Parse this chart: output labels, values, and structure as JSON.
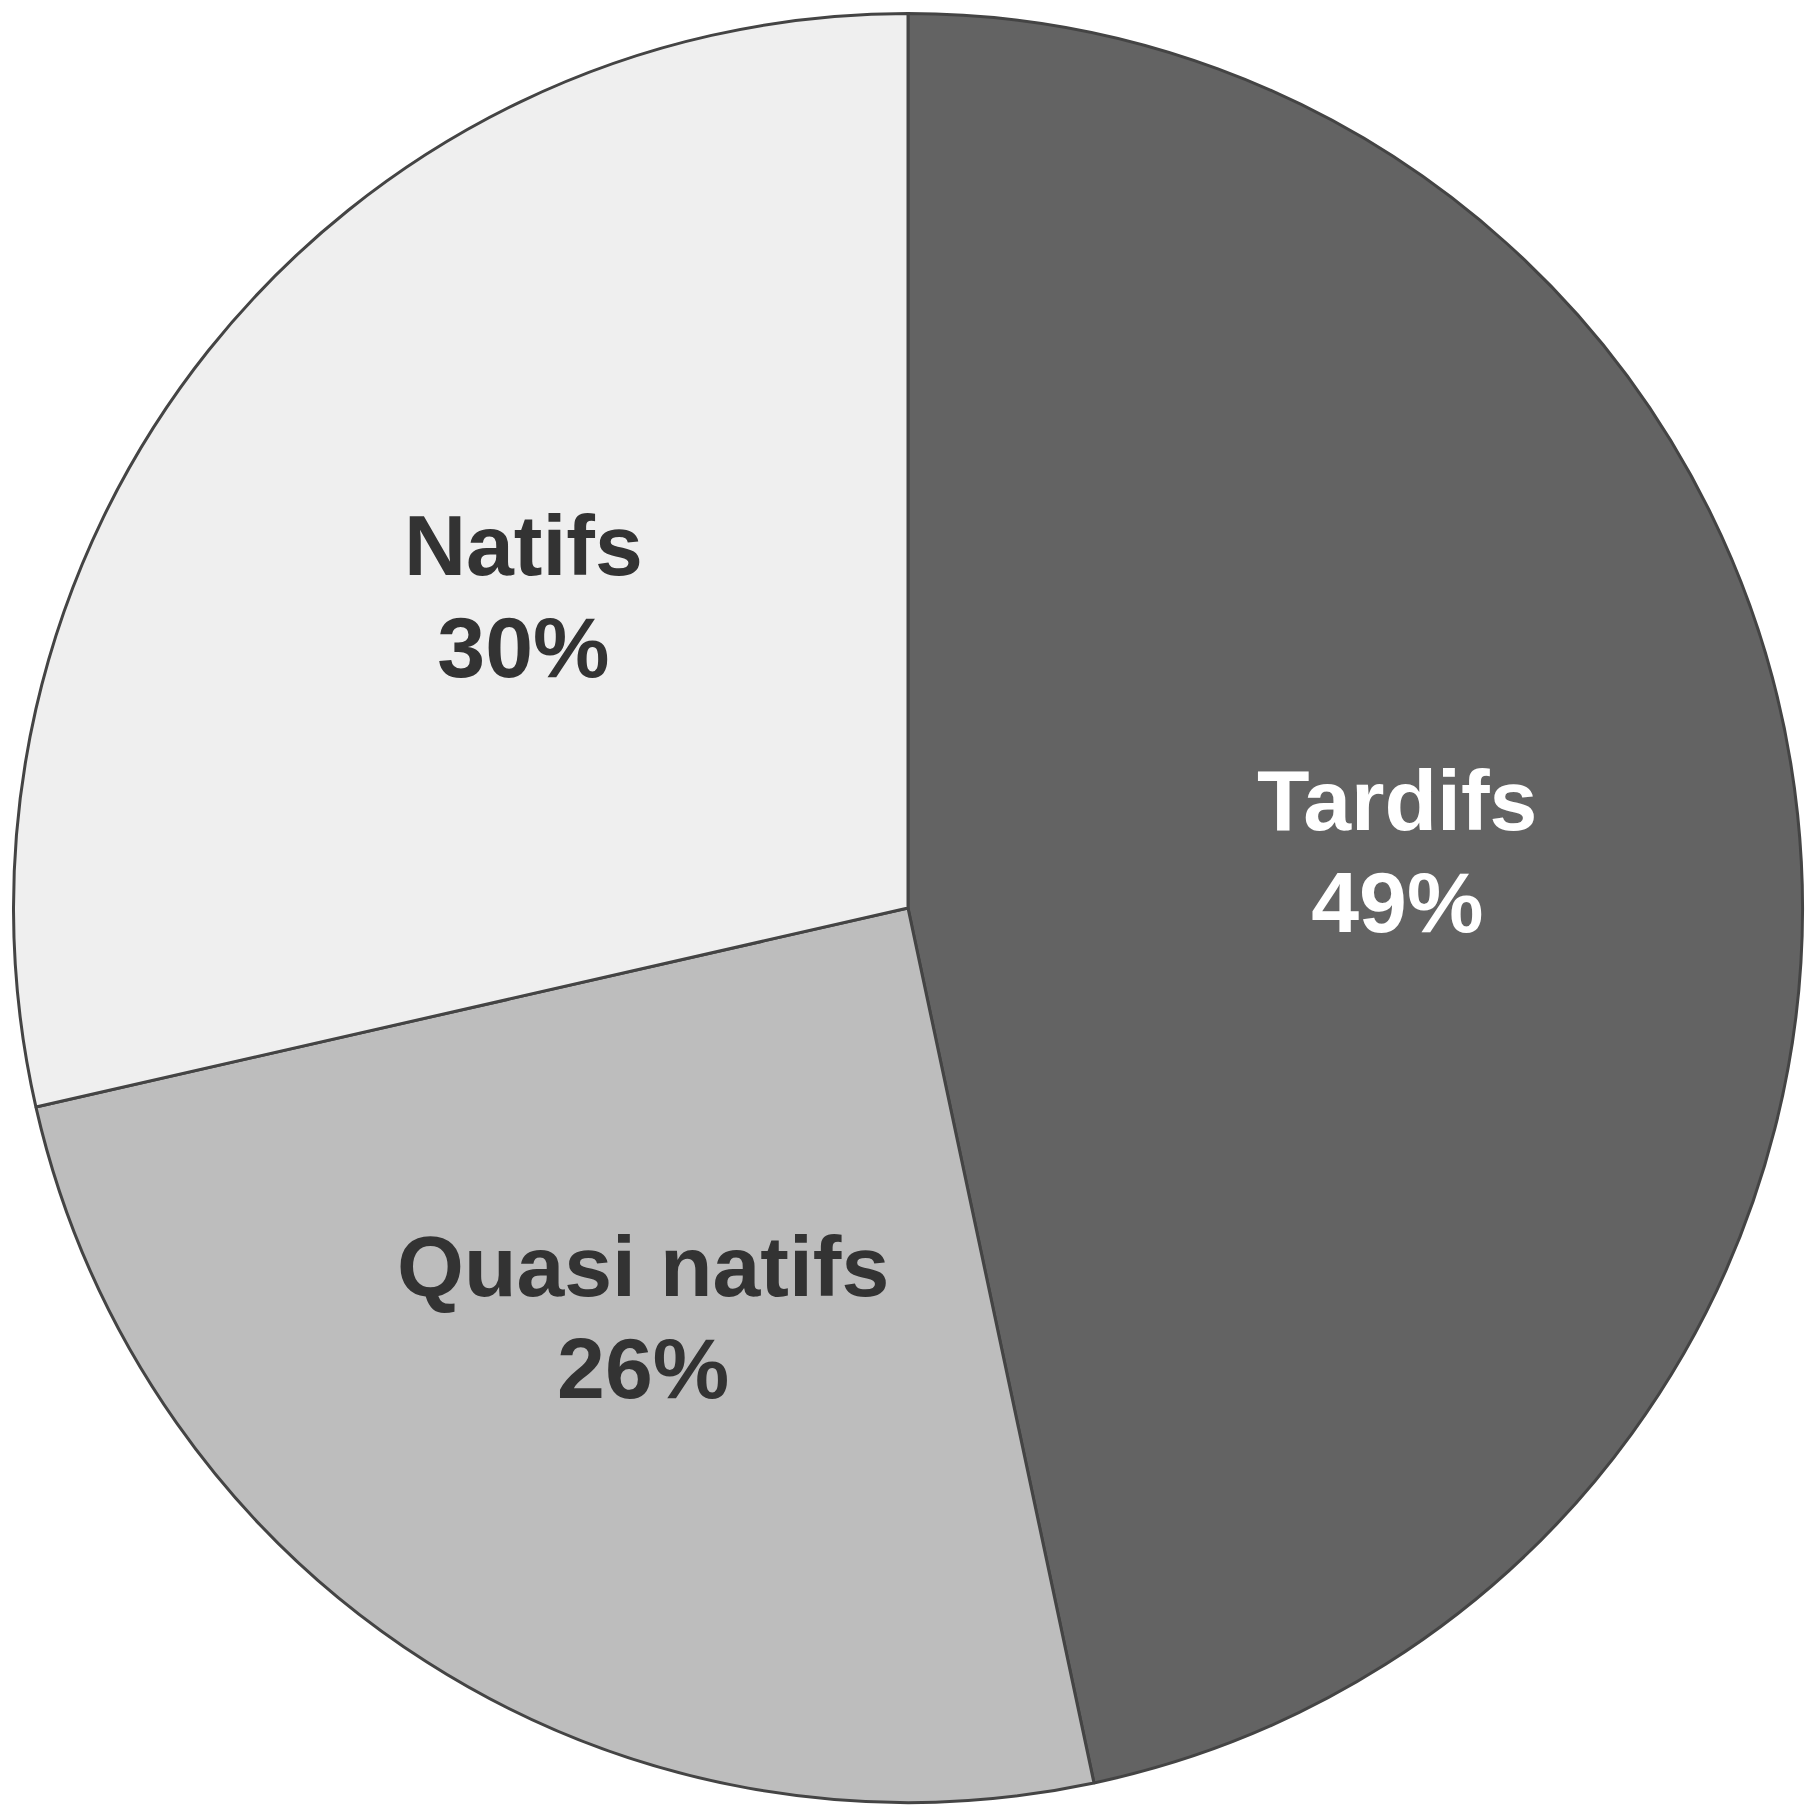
{
  "chart_data": {
    "type": "pie",
    "categories": [
      "Tardifs",
      "Quasi natifs",
      "Natifs"
    ],
    "values": [
      49,
      26,
      30
    ],
    "colors": [
      "#636363",
      "#bdbdbd",
      "#efefef"
    ],
    "value_labels": [
      "49%",
      "26%",
      "30%"
    ]
  }
}
